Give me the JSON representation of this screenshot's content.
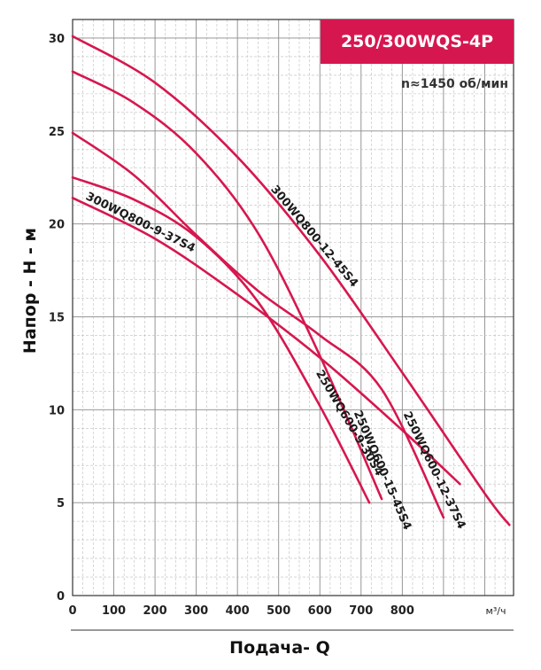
{
  "chart_data": {
    "type": "line",
    "title": "250/300WQS-4P",
    "subtitle": "n≈1450 об/мин",
    "xlabel": "Подача- Q",
    "xunit": "м³/ч",
    "ylabel": "Напор - Н - м",
    "xlim": [
      0,
      1070
    ],
    "ylim": [
      0,
      31
    ],
    "x_ticks": [
      "0",
      "100",
      "200",
      "300",
      "400",
      "500",
      "600",
      "700",
      "800"
    ],
    "y_ticks": [
      "0",
      "5",
      "10",
      "15",
      "20",
      "25",
      "30"
    ],
    "grid": true,
    "colors": {
      "curve": "#d6174f",
      "title_bg": "#d6174f"
    },
    "series": [
      {
        "name": "300WQ800-12-45S4",
        "x": [
          0,
          200,
          400,
          600,
          800,
          1000,
          1060
        ],
        "y": [
          30.1,
          27.6,
          23.6,
          18.3,
          12.0,
          5.5,
          3.8
        ]
      },
      {
        "name": "300WQ800-9-37S4",
        "x": [
          0,
          200,
          400,
          600,
          800,
          940
        ],
        "y": [
          21.4,
          19.2,
          16.2,
          12.8,
          8.9,
          6.0
        ]
      },
      {
        "name": "250WQ600-9-30S4",
        "x": [
          0,
          150,
          300,
          450,
          600,
          720
        ],
        "y": [
          22.5,
          21.3,
          19.3,
          15.8,
          10.2,
          5.0
        ]
      },
      {
        "name": "250WQ600-15-45S4",
        "x": [
          0,
          150,
          300,
          450,
          600,
          750
        ],
        "y": [
          28.2,
          26.5,
          23.8,
          19.5,
          12.9,
          5.2
        ]
      },
      {
        "name": "250WQ600-12-37S4",
        "x": [
          0,
          150,
          300,
          450,
          600,
          750,
          900
        ],
        "y": [
          24.9,
          22.6,
          19.4,
          16.4,
          14.0,
          11.1,
          4.2
        ]
      }
    ]
  }
}
